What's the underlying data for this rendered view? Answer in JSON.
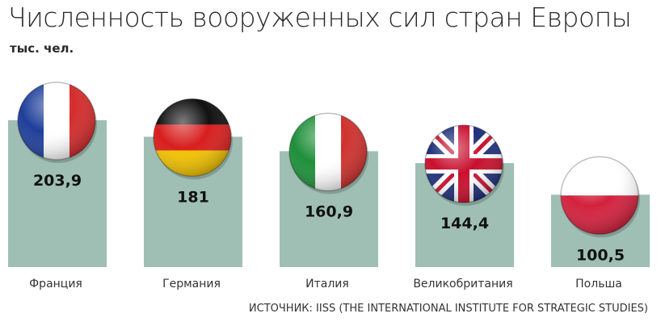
{
  "header": {
    "title": "Численность вооруженных сил стран Европы",
    "unit": "тыс. чел."
  },
  "footer": {
    "source": "ИСТОЧНИК: IISS (THE INTERNATIONAL INSTITUTE FOR STRATEGIC STUDIES)"
  },
  "colors": {
    "bar": "#9fbfb4"
  },
  "chart_data": {
    "type": "bar",
    "title": "Численность вооруженных сил стран Европы",
    "ylabel": "тыс. чел.",
    "categories": [
      "Франция",
      "Германия",
      "Италия",
      "Великобритания",
      "Польша"
    ],
    "values": [
      203.9,
      181,
      160.9,
      144.4,
      100.5
    ],
    "value_labels": [
      "203,9",
      "181",
      "160,9",
      "144,4",
      "100,5"
    ],
    "flags": [
      "france-flag-icon",
      "germany-flag-icon",
      "italy-flag-icon",
      "uk-flag-icon",
      "poland-flag-icon"
    ],
    "grid": false,
    "legend": "none"
  }
}
